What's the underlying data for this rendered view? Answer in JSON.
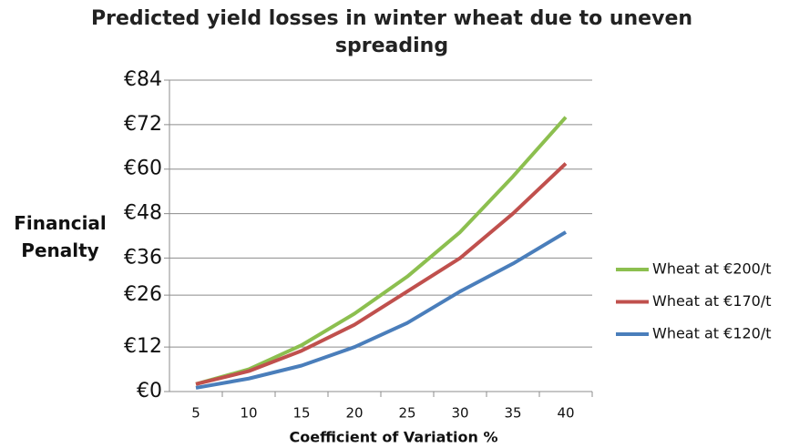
{
  "chart_data": {
    "type": "line",
    "title": "Predicted yield losses in winter wheat due to uneven spreading",
    "y_label": "Financial Penalty",
    "x_label": "Coefficient of Variation %",
    "categories": [
      "5",
      "10",
      "15",
      "20",
      "25",
      "30",
      "35",
      "40"
    ],
    "series": [
      {
        "name": "Wheat at €200/t",
        "color": "#8cbf4f",
        "values": [
          2,
          6,
          12.5,
          21,
          31,
          43,
          58,
          74
        ]
      },
      {
        "name": "Wheat at €170/t",
        "color": "#c0504d",
        "values": [
          2,
          5.5,
          11,
          18,
          27,
          36,
          48,
          61.5
        ]
      },
      {
        "name": "Wheat at €120/t",
        "color": "#4a7ebb",
        "values": [
          1,
          3.5,
          7,
          12,
          18.5,
          27,
          34.5,
          43
        ]
      }
    ],
    "ylim": [
      0,
      84
    ],
    "yticks": [
      {
        "value": 0,
        "label": "€0"
      },
      {
        "value": 12,
        "label": "€12"
      },
      {
        "value": 26,
        "label": "€26"
      },
      {
        "value": 36,
        "label": "€36"
      },
      {
        "value": 48,
        "label": "€48"
      },
      {
        "value": 60,
        "label": "€60"
      },
      {
        "value": 72,
        "label": "€72"
      },
      {
        "value": 84,
        "label": "€84"
      }
    ],
    "grid": true,
    "legend": "right"
  }
}
